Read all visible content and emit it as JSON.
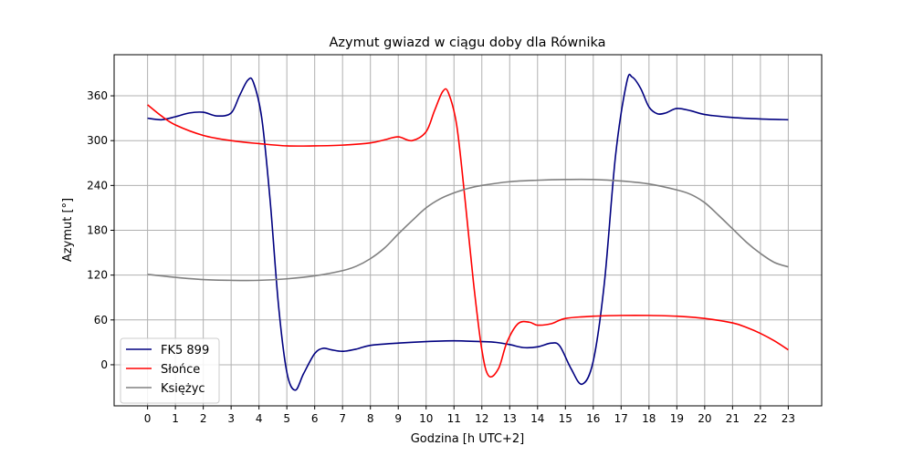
{
  "chart_data": {
    "type": "line",
    "title": "Azymut gwiazd w ciągu doby dla Równika",
    "xlabel": "Godzina [h UTC+2]",
    "ylabel": "Azymut [°]",
    "xlim": [
      -1.2,
      24.2
    ],
    "ylim": [
      -55,
      415
    ],
    "x_ticks": [
      "0",
      "1",
      "2",
      "3",
      "4",
      "5",
      "6",
      "7",
      "8",
      "9",
      "10",
      "11",
      "12",
      "13",
      "14",
      "15",
      "16",
      "17",
      "18",
      "19",
      "20",
      "21",
      "22",
      "23"
    ],
    "y_ticks": [
      0,
      60,
      120,
      180,
      240,
      300,
      360
    ],
    "grid": true,
    "legend_position": "lower-left",
    "series": [
      {
        "name": "FK5 899",
        "color": "#000080",
        "points": [
          [
            0,
            330
          ],
          [
            0.5,
            328
          ],
          [
            1,
            332
          ],
          [
            1.5,
            337
          ],
          [
            2,
            338
          ],
          [
            2.5,
            333
          ],
          [
            3,
            337
          ],
          [
            3.3,
            360
          ],
          [
            3.6,
            381
          ],
          [
            3.8,
            378
          ],
          [
            4.1,
            330
          ],
          [
            4.4,
            220
          ],
          [
            4.7,
            80
          ],
          [
            5,
            -10
          ],
          [
            5.3,
            -34
          ],
          [
            5.6,
            -12
          ],
          [
            6,
            15
          ],
          [
            6.3,
            22
          ],
          [
            6.6,
            20
          ],
          [
            7,
            18
          ],
          [
            7.5,
            21
          ],
          [
            8,
            26
          ],
          [
            9,
            29
          ],
          [
            10,
            31
          ],
          [
            11,
            32
          ],
          [
            12,
            31
          ],
          [
            12.5,
            30
          ],
          [
            13,
            27
          ],
          [
            13.5,
            23
          ],
          [
            14,
            24
          ],
          [
            14.5,
            29
          ],
          [
            14.8,
            25
          ],
          [
            15.2,
            -5
          ],
          [
            15.6,
            -26
          ],
          [
            16,
            5
          ],
          [
            16.4,
            110
          ],
          [
            16.8,
            280
          ],
          [
            17.2,
            378
          ],
          [
            17.4,
            385
          ],
          [
            17.7,
            370
          ],
          [
            18,
            345
          ],
          [
            18.3,
            336
          ],
          [
            18.6,
            337
          ],
          [
            19,
            343
          ],
          [
            19.5,
            340
          ],
          [
            20,
            335
          ],
          [
            21,
            331
          ],
          [
            22,
            329
          ],
          [
            23,
            328
          ]
        ]
      },
      {
        "name": "Słońce",
        "color": "#ff0000",
        "points": [
          [
            0,
            348
          ],
          [
            0.5,
            333
          ],
          [
            1,
            321
          ],
          [
            2,
            307
          ],
          [
            3,
            300
          ],
          [
            4,
            296
          ],
          [
            5,
            293
          ],
          [
            6,
            293
          ],
          [
            7,
            294
          ],
          [
            8,
            297
          ],
          [
            8.5,
            301
          ],
          [
            9,
            305
          ],
          [
            9.5,
            300
          ],
          [
            10,
            312
          ],
          [
            10.3,
            340
          ],
          [
            10.6,
            366
          ],
          [
            10.8,
            364
          ],
          [
            11.1,
            320
          ],
          [
            11.4,
            220
          ],
          [
            11.7,
            110
          ],
          [
            12,
            20
          ],
          [
            12.25,
            -15
          ],
          [
            12.6,
            -5
          ],
          [
            12.9,
            30
          ],
          [
            13.3,
            55
          ],
          [
            13.7,
            57
          ],
          [
            14,
            53
          ],
          [
            14.5,
            55
          ],
          [
            15,
            62
          ],
          [
            16,
            65
          ],
          [
            17,
            66
          ],
          [
            18,
            66
          ],
          [
            19,
            65
          ],
          [
            20,
            62
          ],
          [
            21,
            56
          ],
          [
            21.5,
            50
          ],
          [
            22,
            42
          ],
          [
            22.5,
            32
          ],
          [
            23,
            20
          ]
        ]
      },
      {
        "name": "Księżyc",
        "color": "#808080",
        "points": [
          [
            0,
            121
          ],
          [
            1,
            117
          ],
          [
            2,
            114
          ],
          [
            3,
            113
          ],
          [
            4,
            113
          ],
          [
            5,
            115
          ],
          [
            6,
            119
          ],
          [
            7,
            126
          ],
          [
            7.5,
            132
          ],
          [
            8,
            142
          ],
          [
            8.5,
            156
          ],
          [
            9,
            175
          ],
          [
            9.5,
            193
          ],
          [
            10,
            210
          ],
          [
            10.5,
            222
          ],
          [
            11,
            230
          ],
          [
            11.5,
            236
          ],
          [
            12,
            240
          ],
          [
            13,
            245
          ],
          [
            14,
            247
          ],
          [
            15,
            248
          ],
          [
            16,
            248
          ],
          [
            17,
            246
          ],
          [
            18,
            242
          ],
          [
            19,
            234
          ],
          [
            19.5,
            228
          ],
          [
            20,
            217
          ],
          [
            20.5,
            200
          ],
          [
            21,
            182
          ],
          [
            21.5,
            164
          ],
          [
            22,
            149
          ],
          [
            22.5,
            137
          ],
          [
            23,
            131
          ]
        ]
      }
    ]
  }
}
